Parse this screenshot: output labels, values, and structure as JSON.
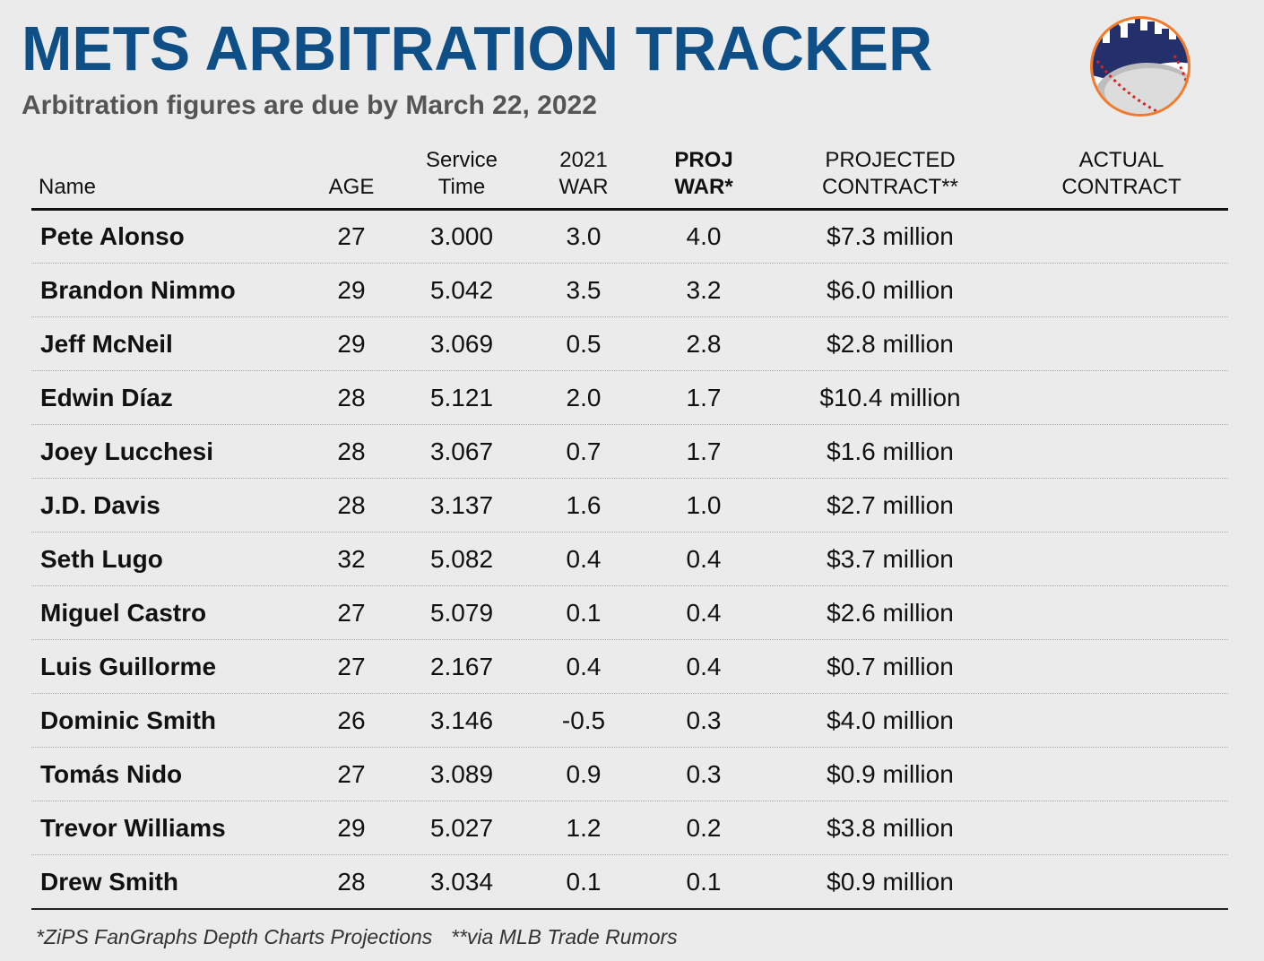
{
  "header": {
    "title": "METS ARBITRATION TRACKER",
    "subtitle": "Arbitration figures are due by March 22, 2022"
  },
  "table": {
    "columns": [
      [
        "Name"
      ],
      [
        "AGE"
      ],
      [
        "Service",
        "Time"
      ],
      [
        "2021",
        "WAR"
      ],
      [
        "PROJ",
        "WAR*"
      ],
      [
        "PROJECTED",
        "CONTRACT**"
      ],
      [
        "ACTUAL",
        "CONTRACT"
      ]
    ],
    "rows": [
      [
        "Pete Alonso",
        "27",
        "3.000",
        "3.0",
        "4.0",
        "$7.3 million"
      ],
      [
        "Brandon Nimmo",
        "29",
        "5.042",
        "3.5",
        "3.2",
        "$6.0 million"
      ],
      [
        "Jeff McNeil",
        "29",
        "3.069",
        "0.5",
        "2.8",
        "$2.8 million"
      ],
      [
        "Edwin Díaz",
        "28",
        "5.121",
        "2.0",
        "1.7",
        "$10.4 million"
      ],
      [
        "Joey Lucchesi",
        "28",
        "3.067",
        "0.7",
        "1.7",
        "$1.6 million"
      ],
      [
        "J.D. Davis",
        "28",
        "3.137",
        "1.6",
        "1.0",
        "$2.7 million"
      ],
      [
        "Seth Lugo",
        "32",
        "5.082",
        "0.4",
        "0.4",
        "$3.7 million"
      ],
      [
        "Miguel Castro",
        "27",
        "5.079",
        "0.1",
        "0.4",
        "$2.6 million"
      ],
      [
        "Luis Guillorme",
        "27",
        "2.167",
        "0.4",
        "0.4",
        "$0.7 million"
      ],
      [
        "Dominic Smith",
        "26",
        "3.146",
        "-0.5",
        "0.3",
        "$4.0 million"
      ],
      [
        "Tomás Nido",
        "27",
        "3.089",
        "0.9",
        "0.3",
        "$0.9 million"
      ],
      [
        "Trevor Williams",
        "29",
        "5.027",
        "1.2",
        "0.2",
        "$3.8 million"
      ],
      [
        "Drew Smith",
        "28",
        "3.034",
        "0.1",
        "0.1",
        "$0.9 million"
      ]
    ]
  },
  "footnotes": [
    "*ZiPS FanGraphs Depth Charts Projections",
    "**via MLB Trade Rumors"
  ]
}
